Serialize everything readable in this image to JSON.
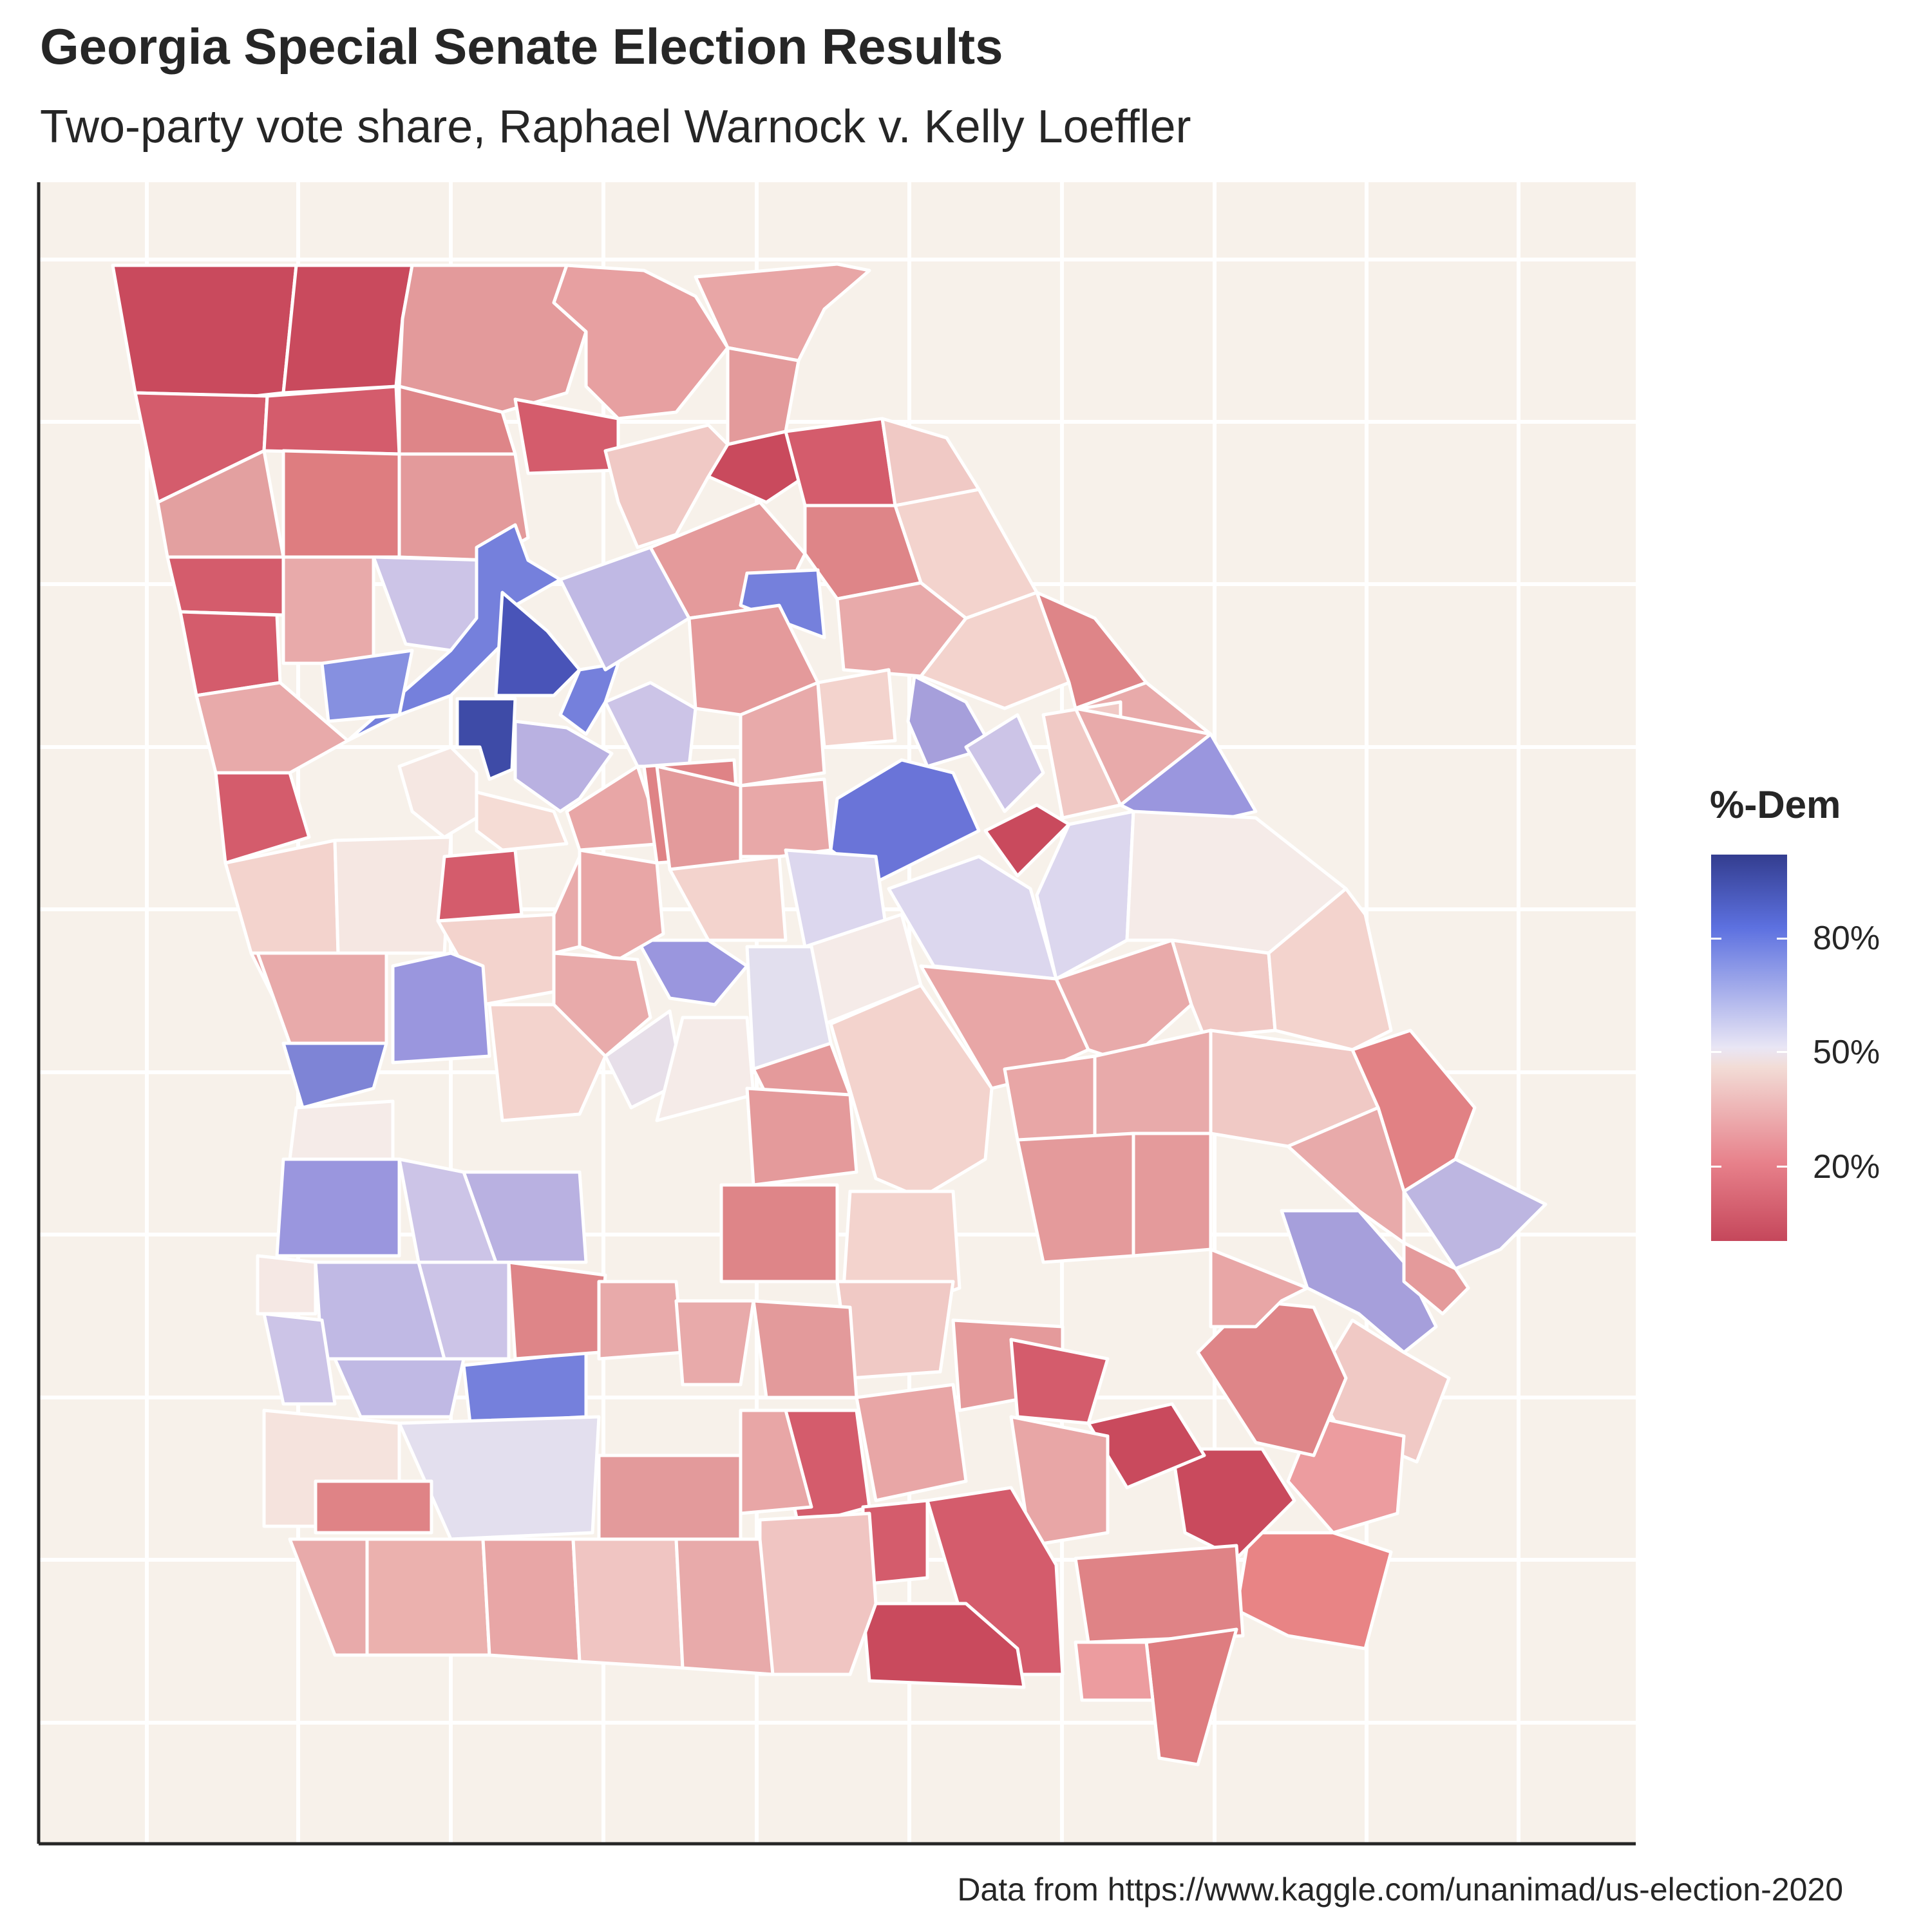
{
  "header": {
    "title": "Georgia Special Senate Election Results",
    "subtitle": "Two-party vote share, Raphael Warnock v. Kelly Loeffler"
  },
  "legend": {
    "title": "%-Dem",
    "labels": [
      "80%",
      "50%",
      "20%"
    ],
    "scale_colors": {
      "high_dem": "#333d8f",
      "mid_high": "#5d71e0",
      "neutral": "#e9e6f5",
      "mid_low": "#e7808a",
      "low_dem": "#c5475b"
    }
  },
  "caption": "Data from https://www.kaggle.com/unanimad/us-election-2020",
  "map": {
    "panel_background": "#f7f1ea",
    "grid_color": "#ffffff",
    "border_color": "#ffffff"
  }
}
